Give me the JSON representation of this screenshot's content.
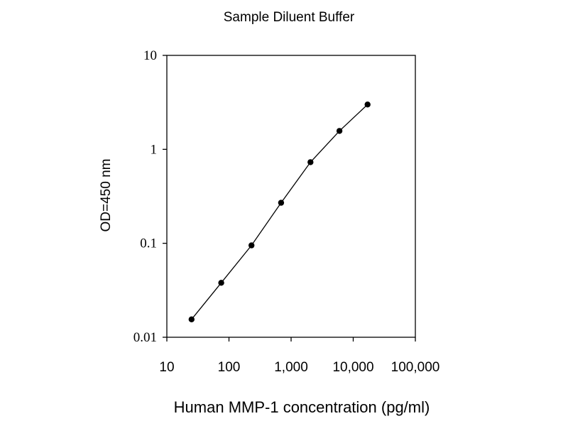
{
  "chart_data": {
    "type": "line",
    "title": "Sample Diluent Buffer",
    "xlabel": "Human MMP-1 concentration (pg/ml)",
    "ylabel": "OD=450 nm",
    "x_scale": "log",
    "y_scale": "log",
    "xlim": [
      10,
      100000
    ],
    "ylim": [
      0.01,
      10
    ],
    "x_ticks": [
      10,
      100,
      1000,
      10000,
      100000
    ],
    "x_tick_labels": [
      "10",
      "100",
      "1,000",
      "10,000",
      "100,000"
    ],
    "y_ticks": [
      0.01,
      0.1,
      1,
      10
    ],
    "y_tick_labels": [
      "0.01",
      "0.1",
      "1",
      "10"
    ],
    "grid": false,
    "legend": "none",
    "series": [
      {
        "x": [
          25,
          75,
          230,
          690,
          2050,
          6000,
          17000
        ],
        "y": [
          0.0155,
          0.038,
          0.095,
          0.27,
          0.73,
          1.57,
          3.0
        ],
        "color": "#000000",
        "marker": "circle"
      }
    ]
  }
}
